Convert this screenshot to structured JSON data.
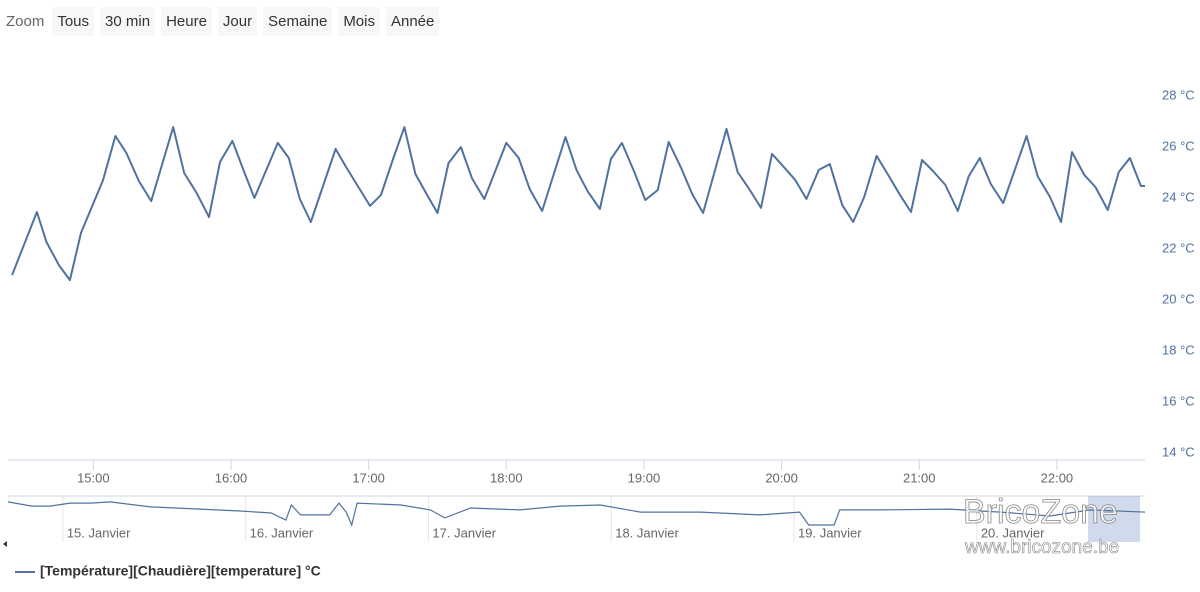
{
  "range_selector": {
    "label": "Zoom",
    "buttons": [
      "Tous",
      "30 min",
      "Heure",
      "Jour",
      "Semaine",
      "Mois",
      "Année"
    ]
  },
  "watermark": {
    "brand": "BricoZone",
    "url": "www.bricozone.be"
  },
  "chart_data": {
    "type": "line",
    "series": [
      {
        "name": "[Température][Chaudière][temperature] °C",
        "color": "#4f72a0",
        "x": [
          14.41,
          14.59,
          14.66,
          14.75,
          14.83,
          14.91,
          15.07,
          15.16,
          15.24,
          15.33,
          15.42,
          15.58,
          15.66,
          15.75,
          15.84,
          15.92,
          16.01,
          16.09,
          16.17,
          16.34,
          16.42,
          16.5,
          16.58,
          16.76,
          16.84,
          17.01,
          17.09,
          17.18,
          17.26,
          17.34,
          17.42,
          17.5,
          17.58,
          17.67,
          17.75,
          17.84,
          18.0,
          18.09,
          18.17,
          18.26,
          18.43,
          18.51,
          18.59,
          18.68,
          18.76,
          18.84,
          18.93,
          19.01,
          19.1,
          19.18,
          19.27,
          19.35,
          19.43,
          19.6,
          19.68,
          19.77,
          19.85,
          19.93,
          20.01,
          20.1,
          20.18,
          20.27,
          20.35,
          20.44,
          20.52,
          20.6,
          20.69,
          20.77,
          20.86,
          20.94,
          21.02,
          21.1,
          21.19,
          21.28,
          21.36,
          21.44,
          21.52,
          21.61,
          21.78,
          21.86,
          21.95,
          22.03,
          22.11,
          22.2,
          22.28,
          22.37,
          22.45,
          22.53,
          22.61,
          22.64
        ],
        "values": [
          20.98,
          23.45,
          22.27,
          21.37,
          20.78,
          22.63,
          24.7,
          26.43,
          25.76,
          24.67,
          23.88,
          26.78,
          24.98,
          24.2,
          23.25,
          25.41,
          26.24,
          25.1,
          24.0,
          26.16,
          25.57,
          23.96,
          23.06,
          25.92,
          25.18,
          23.69,
          24.12,
          25.57,
          26.78,
          24.94,
          24.16,
          23.41,
          25.37,
          26.0,
          24.78,
          23.96,
          26.16,
          25.57,
          24.35,
          23.49,
          26.39,
          25.1,
          24.27,
          23.57,
          25.53,
          26.16,
          25.02,
          23.92,
          24.31,
          26.2,
          25.18,
          24.16,
          23.41,
          26.71,
          25.02,
          24.31,
          23.61,
          25.73,
          25.25,
          24.7,
          23.96,
          25.1,
          25.33,
          23.73,
          23.06,
          24.04,
          25.65,
          24.94,
          24.12,
          23.45,
          25.49,
          25.06,
          24.51,
          23.49,
          24.86,
          25.57,
          24.55,
          23.8,
          26.43,
          24.86,
          24.04,
          23.06,
          25.8,
          24.9,
          24.43,
          23.53,
          25.02,
          25.57,
          24.47,
          24.47
        ]
      }
    ],
    "xlim": [
      14.38,
      22.64
    ],
    "ylim": [
      14,
      28
    ],
    "xticks": [
      {
        "value": 15,
        "label": "15:00"
      },
      {
        "value": 16,
        "label": "16:00"
      },
      {
        "value": 17,
        "label": "17:00"
      },
      {
        "value": 18,
        "label": "18:00"
      },
      {
        "value": 19,
        "label": "19:00"
      },
      {
        "value": 20,
        "label": "20:00"
      },
      {
        "value": 21,
        "label": "21:00"
      },
      {
        "value": 22,
        "label": "22:00"
      }
    ],
    "yticks": [
      {
        "value": 14,
        "label": "14 °C"
      },
      {
        "value": 16,
        "label": "16 °C"
      },
      {
        "value": 18,
        "label": "18 °C"
      },
      {
        "value": 20,
        "label": "20 °C"
      },
      {
        "value": 22,
        "label": "22 °C"
      },
      {
        "value": 24,
        "label": "24 °C"
      },
      {
        "value": 26,
        "label": "26 °C"
      },
      {
        "value": 28,
        "label": "28 °C"
      }
    ],
    "navigator": {
      "xlim": [
        14.7,
        20.92
      ],
      "ylim": [
        16,
        28
      ],
      "xticks": [
        {
          "value": 15,
          "label": "15. Janvier"
        },
        {
          "value": 16,
          "label": "16. Janvier"
        },
        {
          "value": 17,
          "label": "17. Janvier"
        },
        {
          "value": 18,
          "label": "18. Janvier"
        },
        {
          "value": 19,
          "label": "19. Janvier"
        },
        {
          "value": 20,
          "label": "20. Janvier"
        }
      ],
      "x": [
        14.7,
        14.83,
        14.93,
        15.04,
        15.15,
        15.26,
        15.48,
        15.75,
        15.97,
        16.14,
        16.22,
        16.25,
        16.3,
        16.46,
        16.51,
        16.55,
        16.58,
        16.61,
        16.85,
        17.01,
        17.09,
        17.23,
        17.5,
        17.72,
        17.94,
        18.16,
        18.49,
        18.81,
        19.03,
        19.08,
        19.22,
        19.25,
        19.47,
        19.85,
        20.13,
        20.4,
        20.62,
        20.92
      ],
      "values": [
        26.2,
        24.7,
        24.7,
        25.8,
        25.8,
        26.2,
        24.4,
        23.6,
        22.9,
        22.2,
        19.6,
        25.1,
        21.5,
        21.5,
        25.8,
        22.5,
        17.8,
        25.8,
        25.1,
        23.3,
        20.4,
        24.0,
        23.3,
        24.7,
        25.1,
        22.5,
        22.5,
        21.5,
        22.5,
        17.8,
        17.8,
        23.3,
        23.3,
        23.6,
        22.5,
        21.1,
        23.3,
        22.5
      ]
    }
  }
}
